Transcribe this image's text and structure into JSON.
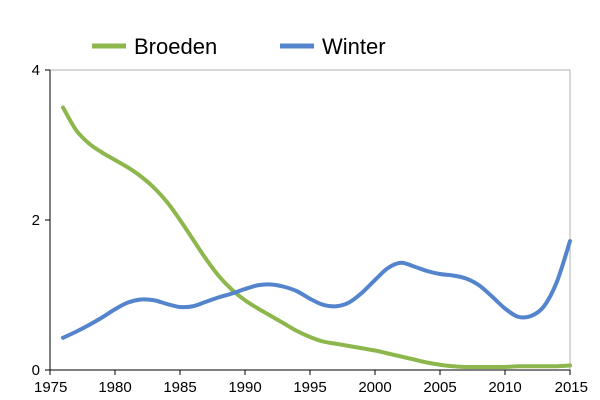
{
  "chart_data": {
    "type": "line",
    "title": "",
    "xlabel": "",
    "ylabel": "",
    "xlim": [
      1975,
      2015
    ],
    "ylim": [
      0,
      4
    ],
    "x_ticks": [
      "1975",
      "1980",
      "1985",
      "1990",
      "1995",
      "2000",
      "2005",
      "2010",
      "2015"
    ],
    "y_ticks": [
      "0",
      "2",
      "4"
    ],
    "grid": false,
    "legend_position": "top",
    "series": [
      {
        "name": "Broeden",
        "color": "#8db74c",
        "x": [
          1976,
          1977,
          1978,
          1979,
          1980,
          1981,
          1982,
          1983,
          1984,
          1985,
          1986,
          1987,
          1988,
          1989,
          1990,
          1991,
          1992,
          1993,
          1994,
          1995,
          1996,
          1997,
          1998,
          1999,
          2000,
          2001,
          2002,
          2003,
          2004,
          2005,
          2006,
          2007,
          2008,
          2009,
          2010,
          2011,
          2012,
          2013,
          2014,
          2015
        ],
        "values": [
          3.5,
          3.2,
          3.02,
          2.9,
          2.8,
          2.7,
          2.58,
          2.43,
          2.24,
          2.0,
          1.74,
          1.48,
          1.25,
          1.07,
          0.93,
          0.82,
          0.72,
          0.62,
          0.52,
          0.44,
          0.38,
          0.35,
          0.32,
          0.29,
          0.26,
          0.22,
          0.18,
          0.14,
          0.1,
          0.07,
          0.05,
          0.04,
          0.04,
          0.04,
          0.04,
          0.05,
          0.05,
          0.05,
          0.05,
          0.06
        ]
      },
      {
        "name": "Winter",
        "color": "#5384cc",
        "x": [
          1976,
          1977,
          1978,
          1979,
          1980,
          1981,
          1982,
          1983,
          1984,
          1985,
          1986,
          1987,
          1988,
          1989,
          1990,
          1991,
          1992,
          1993,
          1994,
          1995,
          1996,
          1997,
          1998,
          1999,
          2000,
          2001,
          2002,
          2003,
          2004,
          2005,
          2006,
          2007,
          2008,
          2009,
          2010,
          2011,
          2012,
          2013,
          2014,
          2015
        ],
        "values": [
          0.43,
          0.51,
          0.6,
          0.7,
          0.81,
          0.9,
          0.94,
          0.93,
          0.88,
          0.84,
          0.85,
          0.91,
          0.97,
          1.02,
          1.08,
          1.13,
          1.14,
          1.11,
          1.05,
          0.95,
          0.87,
          0.85,
          0.9,
          1.03,
          1.2,
          1.36,
          1.43,
          1.38,
          1.32,
          1.28,
          1.26,
          1.22,
          1.13,
          0.98,
          0.82,
          0.71,
          0.72,
          0.85,
          1.18,
          1.72
        ]
      }
    ]
  }
}
